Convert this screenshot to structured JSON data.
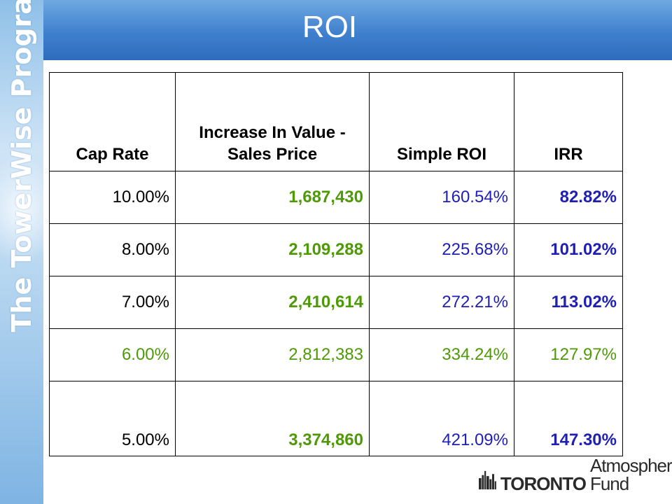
{
  "side_banner": {
    "text": "The TowerWise Program"
  },
  "title": "ROI",
  "table": {
    "headers": [
      "Cap Rate",
      "Increase In Value - Sales Price",
      "Simple ROI",
      "IRR"
    ],
    "rows": [
      {
        "cap_rate": "10.00%",
        "increase": "1,687,430",
        "simple_roi": "160.54%",
        "irr": "82.82%"
      },
      {
        "cap_rate": "8.00%",
        "increase": "2,109,288",
        "simple_roi": "225.68%",
        "irr": "101.02%"
      },
      {
        "cap_rate": "7.00%",
        "increase": "2,410,614",
        "simple_roi": "272.21%",
        "irr": "113.02%"
      },
      {
        "cap_rate": "6.00%",
        "increase": "2,812,383",
        "simple_roi": "334.24%",
        "irr": "127.97%"
      },
      {
        "cap_rate": "5.00%",
        "increase": "3,374,860",
        "simple_roi": "421.09%",
        "irr": "147.30%"
      }
    ]
  },
  "logo": {
    "brand": "TORONTO",
    "name": "Atmospheric Fund"
  },
  "colors": {
    "green": "#4e9a06",
    "blue": "#1f1fb4",
    "title_bar": "#3f80cd"
  }
}
